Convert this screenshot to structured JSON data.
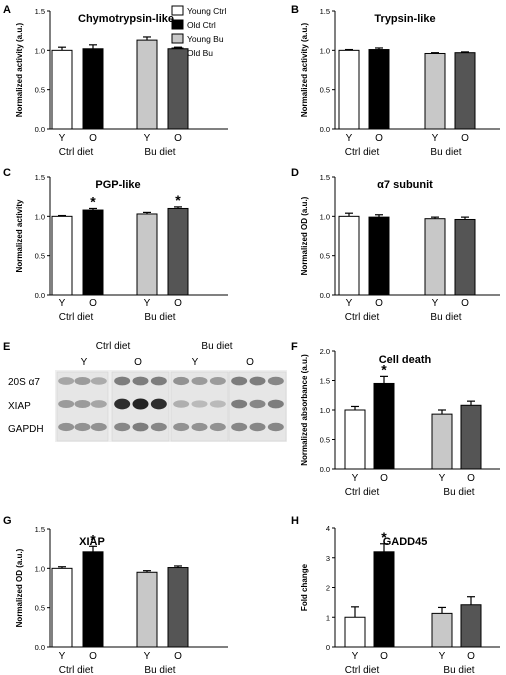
{
  "colors": {
    "young_ctrl": "#ffffff",
    "old_ctrl": "#000000",
    "young_bu": "#c8c8c8",
    "old_bu": "#555555"
  },
  "legend": {
    "position": "top-right of panel A",
    "items": [
      "Young Ctrl",
      "Old Ctrl",
      "Young Bu",
      "Old Bu"
    ]
  },
  "panel_E": {
    "label": "E",
    "group_labels": [
      "Ctrl diet",
      "Bu diet"
    ],
    "lane_labels": [
      "Y",
      "O",
      "Y",
      "O"
    ],
    "row_labels": [
      "20S α7",
      "XIAP",
      "GAPDH"
    ]
  },
  "chart_data": [
    {
      "id": "A",
      "label": "A",
      "type": "bar",
      "title": "Chymotrypsin-like",
      "ylabel": "Normalized activity (a.u.)",
      "ylim": [
        0,
        1.5
      ],
      "yticks": [
        "0.0",
        "0.5",
        "1.0",
        "1.5"
      ],
      "categories": [
        "Y",
        "O",
        "Y",
        "O"
      ],
      "groups": [
        "Ctrl diet",
        "Bu diet"
      ],
      "values": [
        1.0,
        1.02,
        1.13,
        1.02
      ],
      "errors": [
        0.04,
        0.05,
        0.04,
        0.02
      ],
      "significant": [
        false,
        false,
        false,
        false
      ]
    },
    {
      "id": "B",
      "label": "B",
      "type": "bar",
      "title": "Trypsin-like",
      "ylabel": "Normalized activity (a.u.)",
      "ylim": [
        0,
        1.5
      ],
      "yticks": [
        "0.0",
        "0.5",
        "1.0",
        "1.5"
      ],
      "categories": [
        "Y",
        "O",
        "Y",
        "O"
      ],
      "groups": [
        "Ctrl diet",
        "Bu diet"
      ],
      "values": [
        1.0,
        1.01,
        0.96,
        0.97
      ],
      "errors": [
        0.01,
        0.02,
        0.01,
        0.01
      ],
      "significant": [
        false,
        false,
        false,
        false
      ]
    },
    {
      "id": "C",
      "label": "C",
      "type": "bar",
      "title": "PGP-like",
      "ylabel": "Normalized activity",
      "ylim": [
        0,
        1.5
      ],
      "yticks": [
        "0.0",
        "0.5",
        "1.0",
        "1.5"
      ],
      "categories": [
        "Y",
        "O",
        "Y",
        "O"
      ],
      "groups": [
        "Ctrl diet",
        "Bu diet"
      ],
      "values": [
        1.0,
        1.08,
        1.03,
        1.1
      ],
      "errors": [
        0.01,
        0.02,
        0.02,
        0.02
      ],
      "significant": [
        false,
        true,
        false,
        true
      ]
    },
    {
      "id": "D",
      "label": "D",
      "type": "bar",
      "title": "α7 subunit",
      "ylabel": "Normalized OD (a.u.)",
      "ylim": [
        0,
        1.5
      ],
      "yticks": [
        "0.0",
        "0.5",
        "1.0",
        "1.5"
      ],
      "categories": [
        "Y",
        "O",
        "Y",
        "O"
      ],
      "groups": [
        "Ctrl diet",
        "Bu diet"
      ],
      "values": [
        1.0,
        0.99,
        0.97,
        0.96
      ],
      "errors": [
        0.04,
        0.03,
        0.02,
        0.03
      ],
      "significant": [
        false,
        false,
        false,
        false
      ]
    },
    {
      "id": "F",
      "label": "F",
      "type": "bar",
      "title": "Cell death",
      "ylabel": "Normalized absorbance (a.u.)",
      "ylim": [
        0,
        2.0
      ],
      "yticks": [
        "0.0",
        "0.5",
        "1.0",
        "1.5",
        "2.0"
      ],
      "categories": [
        "Y",
        "O",
        "Y",
        "O"
      ],
      "groups": [
        "Ctrl diet",
        "Bu diet"
      ],
      "values": [
        1.0,
        1.45,
        0.93,
        1.08
      ],
      "errors": [
        0.06,
        0.12,
        0.07,
        0.07
      ],
      "significant": [
        false,
        true,
        false,
        false
      ]
    },
    {
      "id": "G",
      "label": "G",
      "type": "bar",
      "title": "XIAP",
      "ylabel": "Normalized OD (a.u.)",
      "ylim": [
        0,
        1.5
      ],
      "yticks": [
        "0.0",
        "0.5",
        "1.0",
        "1.5"
      ],
      "categories": [
        "Y",
        "O",
        "Y",
        "O"
      ],
      "groups": [
        "Ctrl diet",
        "Bu diet"
      ],
      "values": [
        1.0,
        1.21,
        0.95,
        1.01
      ],
      "errors": [
        0.02,
        0.07,
        0.02,
        0.02
      ],
      "significant": [
        false,
        true,
        false,
        false
      ]
    },
    {
      "id": "H",
      "label": "H",
      "type": "bar",
      "title": "GADD45",
      "ylabel": "Fold change",
      "ylim": [
        0,
        4
      ],
      "yticks": [
        "0",
        "1",
        "2",
        "3",
        "4"
      ],
      "categories": [
        "Y",
        "O",
        "Y",
        "O"
      ],
      "groups": [
        "Ctrl diet",
        "Bu diet"
      ],
      "values": [
        1.0,
        3.2,
        1.13,
        1.42
      ],
      "errors": [
        0.35,
        0.27,
        0.2,
        0.27
      ],
      "significant": [
        false,
        true,
        false,
        false
      ]
    }
  ]
}
